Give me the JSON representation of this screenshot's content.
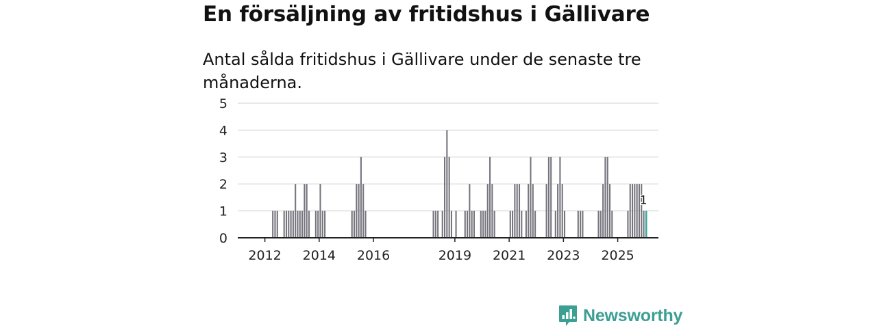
{
  "title": "En försäljning av fritidshus i Gällivare",
  "subtitle": "Antal sålda fritidshus i Gällivare under de senaste tre månaderna.",
  "brand": {
    "name": "Newsworthy",
    "color": "#3b9f94"
  },
  "chart_data": {
    "type": "bar",
    "title": "En försäljning av fritidshus i Gällivare",
    "subtitle": "Antal sålda fritidshus i Gällivare under de senaste tre månaderna.",
    "xlabel": "",
    "ylabel": "",
    "ylim": [
      0,
      5
    ],
    "yticks": [
      0,
      1,
      2,
      3,
      4,
      5
    ],
    "x_start": "2011-01",
    "x_end": "2026-06",
    "xticks": [
      "2012",
      "2014",
      "2016",
      "2019",
      "2021",
      "2023",
      "2025"
    ],
    "grid": true,
    "bar_color": "#76757e",
    "highlight_color": "#3aa99b",
    "highlight_label": "1",
    "series": [
      {
        "name": "Antal sålda fritidshus",
        "data": [
          [
            "2012-04",
            1
          ],
          [
            "2012-05",
            1
          ],
          [
            "2012-06",
            1
          ],
          [
            "2012-09",
            1
          ],
          [
            "2012-10",
            1
          ],
          [
            "2012-11",
            1
          ],
          [
            "2012-12",
            1
          ],
          [
            "2013-01",
            1
          ],
          [
            "2013-02",
            2
          ],
          [
            "2013-03",
            1
          ],
          [
            "2013-04",
            1
          ],
          [
            "2013-05",
            1
          ],
          [
            "2013-06",
            2
          ],
          [
            "2013-07",
            2
          ],
          [
            "2013-08",
            1
          ],
          [
            "2013-11",
            1
          ],
          [
            "2013-12",
            1
          ],
          [
            "2014-01",
            2
          ],
          [
            "2014-02",
            1
          ],
          [
            "2014-03",
            1
          ],
          [
            "2015-03",
            1
          ],
          [
            "2015-04",
            1
          ],
          [
            "2015-05",
            2
          ],
          [
            "2015-06",
            2
          ],
          [
            "2015-07",
            3
          ],
          [
            "2015-08",
            2
          ],
          [
            "2015-09",
            1
          ],
          [
            "2018-03",
            1
          ],
          [
            "2018-04",
            1
          ],
          [
            "2018-05",
            1
          ],
          [
            "2018-07",
            1
          ],
          [
            "2018-08",
            3
          ],
          [
            "2018-09",
            4
          ],
          [
            "2018-10",
            3
          ],
          [
            "2018-11",
            1
          ],
          [
            "2019-01",
            1
          ],
          [
            "2019-05",
            1
          ],
          [
            "2019-06",
            1
          ],
          [
            "2019-07",
            2
          ],
          [
            "2019-08",
            1
          ],
          [
            "2019-09",
            1
          ],
          [
            "2019-12",
            1
          ],
          [
            "2020-01",
            1
          ],
          [
            "2020-02",
            1
          ],
          [
            "2020-03",
            2
          ],
          [
            "2020-04",
            3
          ],
          [
            "2020-05",
            2
          ],
          [
            "2020-06",
            1
          ],
          [
            "2021-01",
            1
          ],
          [
            "2021-02",
            1
          ],
          [
            "2021-03",
            2
          ],
          [
            "2021-04",
            2
          ],
          [
            "2021-05",
            2
          ],
          [
            "2021-06",
            1
          ],
          [
            "2021-08",
            1
          ],
          [
            "2021-09",
            2
          ],
          [
            "2021-10",
            3
          ],
          [
            "2021-11",
            2
          ],
          [
            "2021-12",
            1
          ],
          [
            "2022-05",
            2
          ],
          [
            "2022-06",
            3
          ],
          [
            "2022-07",
            3
          ],
          [
            "2022-09",
            1
          ],
          [
            "2022-10",
            2
          ],
          [
            "2022-11",
            3
          ],
          [
            "2022-12",
            2
          ],
          [
            "2023-01",
            1
          ],
          [
            "2023-07",
            1
          ],
          [
            "2023-08",
            1
          ],
          [
            "2023-09",
            1
          ],
          [
            "2024-04",
            1
          ],
          [
            "2024-05",
            1
          ],
          [
            "2024-06",
            2
          ],
          [
            "2024-07",
            3
          ],
          [
            "2024-08",
            3
          ],
          [
            "2024-09",
            2
          ],
          [
            "2024-10",
            1
          ],
          [
            "2025-05",
            1
          ],
          [
            "2025-06",
            2
          ],
          [
            "2025-07",
            2
          ],
          [
            "2025-08",
            2
          ],
          [
            "2025-09",
            2
          ],
          [
            "2025-10",
            2
          ],
          [
            "2025-11",
            2
          ],
          [
            "2025-12",
            1
          ],
          [
            "2026-01",
            1
          ]
        ]
      }
    ],
    "highlight_month": "2026-01"
  }
}
